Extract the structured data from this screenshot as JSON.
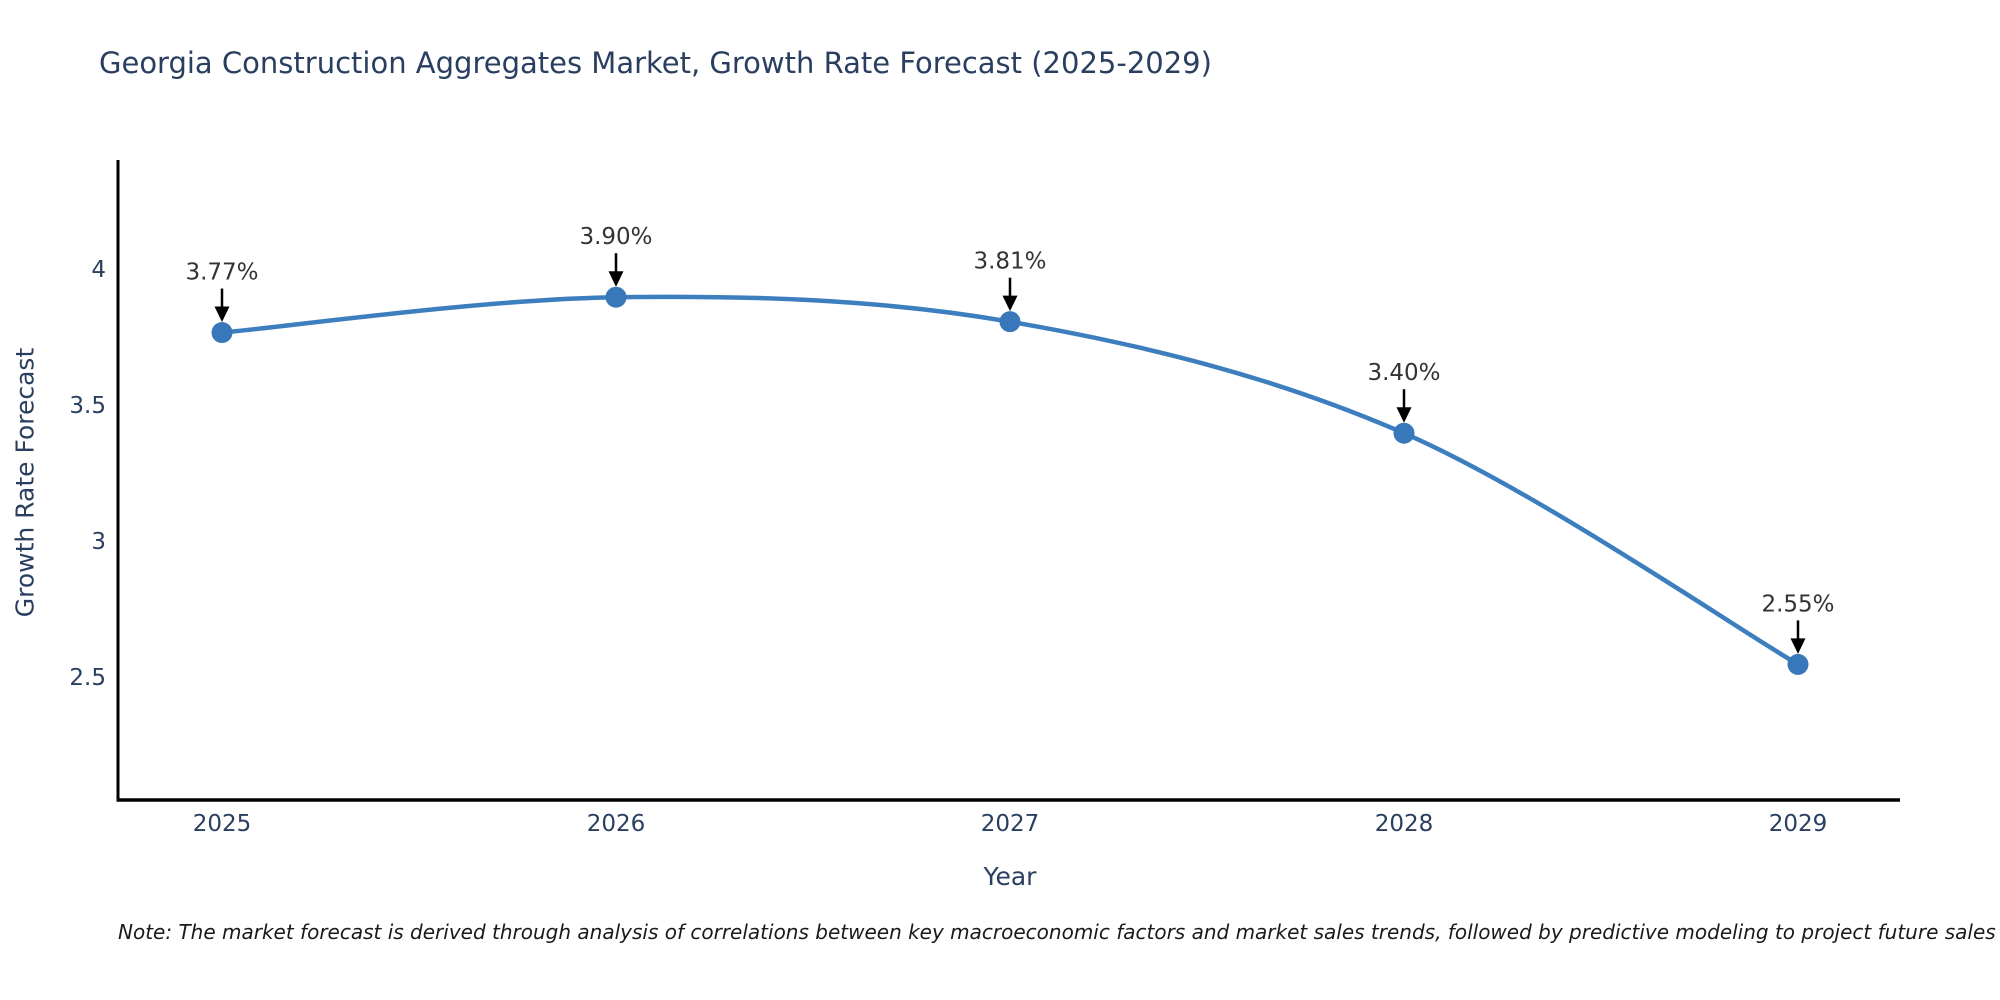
{
  "title": "Georgia Construction Aggregates Market, Growth Rate Forecast (2025-2029)",
  "note": "Note: The market forecast is derived through analysis of correlations between key macroeconomic factors and market sales trends, followed by predictive modeling to project future sales",
  "chart_data": {
    "type": "line",
    "title": "Georgia Construction Aggregates Market, Growth Rate Forecast (2025-2029)",
    "xlabel": "Year",
    "ylabel": "Growth Rate Forecast",
    "x": [
      2025,
      2026,
      2027,
      2028,
      2029
    ],
    "values": [
      3.77,
      3.9,
      3.81,
      3.4,
      2.55
    ],
    "point_labels": [
      "3.77%",
      "3.90%",
      "3.81%",
      "3.40%",
      "2.55%"
    ],
    "xticks": [
      "2025",
      "2026",
      "2027",
      "2028",
      "2029"
    ],
    "yticks": [
      4,
      3.5,
      3,
      2.5
    ],
    "ytick_labels": [
      "4",
      "3.5",
      "3",
      "2.5"
    ],
    "ylim": [
      2.05,
      4.4
    ],
    "grid": false,
    "legend": "none",
    "line_color": "#3d7ebf",
    "marker_color": "#3878ba",
    "axis_color": "#000000",
    "text_color": "#2a3f5f",
    "annotation_text_color": "#333333",
    "annotation_arrow_color": "#000000"
  }
}
